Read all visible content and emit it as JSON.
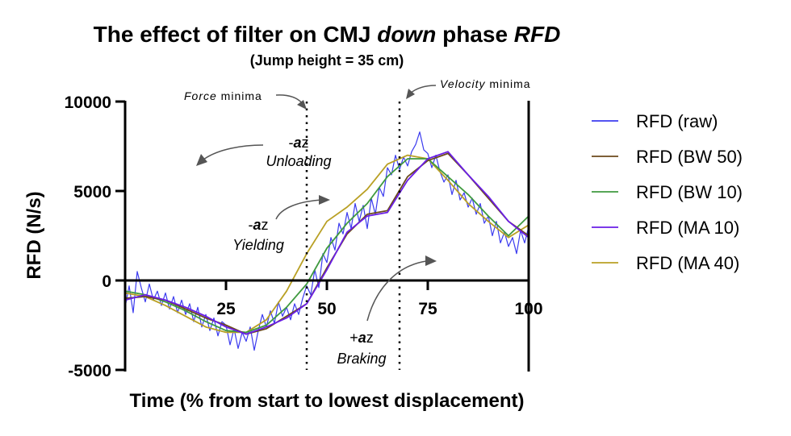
{
  "chart_data": {
    "type": "line",
    "title_parts": [
      "The effect of filter on CMJ ",
      "down",
      " phase ",
      "RFD"
    ],
    "subtitle": "(Jump height = 35 cm)",
    "xlabel": "Time (% from start to lowest displacement)",
    "ylabel": "RFD (N/s)",
    "xlim": [
      0,
      100
    ],
    "ylim": [
      -5000,
      10000
    ],
    "xticks": [
      "25",
      "50",
      "75",
      "100"
    ],
    "yticks": [
      "10000",
      "5000",
      "0",
      "-5000"
    ],
    "grid": false,
    "legend_position": "right",
    "series": [
      {
        "name": "RFD (raw)",
        "color": "#3b3bef",
        "x_step": 1,
        "values": [
          -1500,
          -300,
          -1800,
          500,
          -400,
          -1200,
          -200,
          -1100,
          -600,
          -1400,
          -700,
          -1600,
          -900,
          -1800,
          -1100,
          -1900,
          -1300,
          -2300,
          -1500,
          -2600,
          -1900,
          -2800,
          -2100,
          -3100,
          -2300,
          -2500,
          -3600,
          -2700,
          -3800,
          -2900,
          -3400,
          -2600,
          -3900,
          -2800,
          -1900,
          -2600,
          -1700,
          -2400,
          -1200,
          -2000,
          -1500,
          -2200,
          -1300,
          -1900,
          -1000,
          -300,
          -800,
          600,
          -400,
          1500,
          1000,
          2400,
          1700,
          3200,
          2600,
          3800,
          2900,
          4300,
          3300,
          4200,
          2900,
          4600,
          3700,
          5200,
          4700,
          6300,
          5900,
          7000,
          6200,
          6900,
          6400,
          7200,
          7600,
          8300,
          7300,
          7100,
          6300,
          7000,
          6100,
          5500,
          5900,
          4800,
          5600,
          4500,
          4900,
          4100,
          4600,
          3700,
          4300,
          3200,
          3600,
          2500,
          3300,
          2100,
          2700,
          1900,
          2400,
          1500,
          2800,
          2100,
          3000
        ]
      },
      {
        "name": "RFD (BW 50)",
        "color": "#6b4a1c",
        "x_step": 5,
        "values": [
          -1000,
          -900,
          -1100,
          -1600,
          -2100,
          -2500,
          -3000,
          -2700,
          -2000,
          -1300,
          700,
          2600,
          3700,
          3900,
          5800,
          6700,
          7100,
          5900,
          4600,
          3300,
          2500
        ]
      },
      {
        "name": "RFD (BW 10)",
        "color": "#3f9a3f",
        "x_step": 5,
        "values": [
          -600,
          -800,
          -1200,
          -1700,
          -2300,
          -2800,
          -2900,
          -2500,
          -1500,
          -200,
          1800,
          3200,
          4300,
          5800,
          6800,
          6800,
          5800,
          4800,
          3600,
          2500,
          3600
        ]
      },
      {
        "name": "RFD (MA 10)",
        "color": "#6a1ee6",
        "x_step": 5,
        "values": [
          -1100,
          -800,
          -1100,
          -1500,
          -2000,
          -2600,
          -3000,
          -2600,
          -2100,
          -1300,
          600,
          2700,
          3600,
          3800,
          5600,
          6800,
          7200,
          5900,
          4700,
          3300,
          2400
        ]
      },
      {
        "name": "RFD (MA 40)",
        "color": "#b9a024",
        "x_step": 5,
        "values": [
          -700,
          -900,
          -1400,
          -2000,
          -2600,
          -2900,
          -2900,
          -2200,
          -600,
          1500,
          3300,
          4100,
          5100,
          6500,
          7000,
          6800,
          5600,
          4300,
          3300,
          2400,
          3100
        ]
      }
    ],
    "vertical_markers": [
      {
        "x": 45,
        "label_italic": "Force",
        "label_rest": " minima"
      },
      {
        "x": 68,
        "label_italic": "Velocity",
        "label_rest": " minima"
      }
    ],
    "annotations": [
      {
        "sign": "-",
        "bold": "a",
        "rest": "z",
        "phase": "Unloading"
      },
      {
        "sign": "-",
        "bold": "a",
        "rest": "z",
        "phase": "Yielding"
      },
      {
        "sign": "+",
        "bold": "a",
        "rest": "z",
        "phase": "Braking"
      }
    ]
  }
}
